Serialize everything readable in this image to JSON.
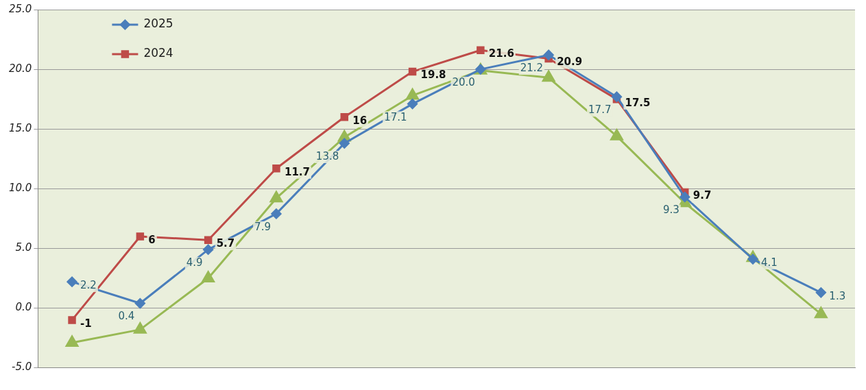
{
  "chart_data": {
    "type": "line",
    "categories": [
      null,
      null,
      null,
      null,
      null,
      null,
      null,
      null,
      null,
      null,
      null,
      null
    ],
    "series": [
      {
        "name": "2025",
        "color": "#4a7ebb",
        "marker": "diamond",
        "values": [
          2.2,
          0.4,
          4.9,
          7.9,
          13.8,
          17.1,
          20.0,
          21.2,
          17.7,
          9.3,
          4.1,
          1.3
        ],
        "value_labels": [
          "2.2",
          "0.4",
          "4.9",
          "7.9",
          "13.8",
          "17.1",
          "20.0",
          "21.2",
          "17.7",
          "9.3",
          "4.1",
          "1.3"
        ]
      },
      {
        "name": "2024",
        "color": "#be4b48",
        "marker": "square",
        "values": [
          -1,
          6,
          5.7,
          11.7,
          16,
          19.8,
          21.6,
          20.9,
          17.5,
          9.7,
          null,
          null
        ],
        "value_labels": [
          "-1",
          "6",
          "5.7",
          "11.7",
          "16",
          "19.8",
          "21.6",
          "20.9",
          "17.5",
          "9.7",
          null,
          null
        ]
      },
      {
        "color": "#98b954",
        "marker": "triangle",
        "values": [
          -2.9,
          -1.8,
          2.5,
          9.2,
          14.3,
          17.8,
          19.9,
          19.3,
          14.4,
          8.8,
          4.2,
          -0.5
        ]
      }
    ],
    "ylim": [
      -5,
      25
    ],
    "yticks": [
      {
        "value": -5,
        "label": "-5.0"
      },
      {
        "value": 0,
        "label": "0.0"
      },
      {
        "value": 5,
        "label": "5.0"
      },
      {
        "value": 10,
        "label": "10.0"
      },
      {
        "value": 15,
        "label": "15.0"
      },
      {
        "value": 20,
        "label": "20.0"
      },
      {
        "value": 25,
        "label": "25.0"
      }
    ],
    "grid": "y",
    "legend": "top left",
    "line_style": "solid"
  }
}
